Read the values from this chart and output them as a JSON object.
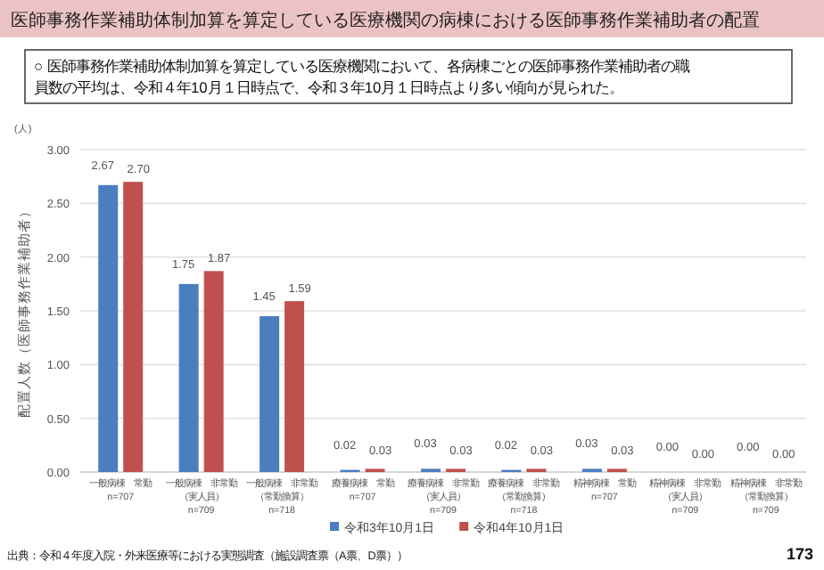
{
  "chart_data": {
    "type": "bar",
    "title": "医師事務作業補助体制加算を算定している医療機関の病棟における医師事務作業補助者の配置",
    "subtitle": "○ 医師事務作業補助体制加算を算定している医療機関において、各病棟ごとの医師事務作業補助者の職員数の平均は、令和４年10月１日時点で、令和３年10月１日時点より多い傾向が見られた。",
    "ylabel": "配置人数（医師事務作業補助者）",
    "categories": [
      "一般病棟　常勤\nn=707",
      "一般病棟　非常勤（実人員）\nn=709",
      "一般病棟　非常勤（常勤換算）\nn=718",
      "療養病棟　常勤\nn=707",
      "療養病棟　非常勤（実人員）\nn=709",
      "療養病棟　非常勤（常勤換算）\nn=718",
      "精神病棟　常勤\nn=707",
      "精神病棟　非常勤（実人員）\nn=709",
      "精神病棟　非常勤（常勤換算）\nn=709"
    ],
    "series": [
      {
        "name": "令和3年10月1日",
        "color": "#4a7ebf",
        "values": [
          2.67,
          1.75,
          1.45,
          0.02,
          0.03,
          0.02,
          0.03,
          0.0,
          0.0
        ],
        "value_labels": [
          "2.67",
          "1.75",
          "1.45",
          "0.02",
          "0.03",
          "0.02",
          "0.03",
          "0.00",
          "0.00"
        ]
      },
      {
        "name": "令和4年10月1日",
        "color": "#c0504d",
        "values": [
          2.7,
          1.87,
          1.59,
          0.03,
          0.03,
          0.03,
          0.03,
          0.0,
          0.0
        ],
        "value_labels": [
          "2.70",
          "1.87",
          "1.59",
          "0.03",
          "0.03",
          "0.03",
          "0.03",
          "0.00",
          "0.00"
        ]
      }
    ],
    "ylim": [
      0,
      3
    ],
    "yticks": [
      {
        "value": 0,
        "label": "0.00"
      },
      {
        "value": 0.5,
        "label": "0.50"
      },
      {
        "value": 1,
        "label": "1.00"
      },
      {
        "value": 1.5,
        "label": "1.50"
      },
      {
        "value": 2,
        "label": "2.00"
      },
      {
        "value": 2.5,
        "label": "2.50"
      },
      {
        "value": 3,
        "label": "3.00"
      }
    ],
    "grid": "y",
    "legend": "bottom",
    "annotations": [
      "(人)",
      "出典：令和４年度入院・外来医療等における実態調査（施設調査票（A票、D票））",
      "173"
    ]
  }
}
